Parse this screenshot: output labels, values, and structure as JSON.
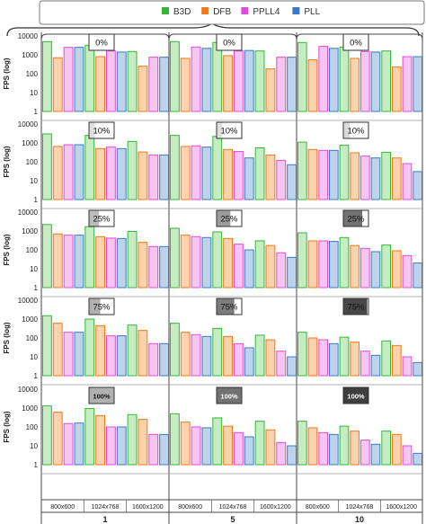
{
  "chart_data": {
    "type": "bar",
    "title": "",
    "legend": {
      "placement": "top",
      "entries": [
        {
          "name": "B3D",
          "fill": "#c6ecc2",
          "stroke": "#35b53a"
        },
        {
          "name": "DFB",
          "fill": "#fbd2ae",
          "stroke": "#f07a18"
        },
        {
          "name": "PPLL4",
          "fill": "#f6c6f3",
          "stroke": "#e24ad8"
        },
        {
          "name": "PLL",
          "fill": "#bdd3ea",
          "stroke": "#3b78c4"
        }
      ]
    },
    "ylabel": "FPS (log)",
    "yscale": "log",
    "grid": true,
    "groups": [
      {
        "label": "1",
        "resolutions": [
          "800x600",
          "1024x768",
          "1600x1200"
        ]
      },
      {
        "label": "5",
        "resolutions": [
          "800x600",
          "1024x768",
          "1600x1200"
        ]
      },
      {
        "label": "10",
        "resolutions": [
          "800x600",
          "1024x768",
          "1600x1200"
        ]
      }
    ],
    "panels": [
      {
        "overlay_label": "0%",
        "overlay_fill": [
          0,
          0,
          0
        ],
        "ylim": [
          1,
          10000
        ],
        "yticks": [
          "10000",
          "1000",
          "100",
          "10",
          "1"
        ],
        "values": [
          [
            [
              5000,
              700,
              2500,
              2500
            ],
            [
              3200,
              800,
              1600,
              1400
            ],
            [
              1500,
              250,
              750,
              750
            ]
          ],
          [
            [
              5000,
              650,
              2600,
              2200
            ],
            [
              4500,
              900,
              1600,
              1700
            ],
            [
              1600,
              180,
              750,
              750
            ]
          ],
          [
            [
              4500,
              550,
              2800,
              2200
            ],
            [
              2600,
              650,
              1500,
              1400
            ],
            [
              1600,
              230,
              800,
              800
            ]
          ]
        ]
      },
      {
        "overlay_label": "10%",
        "overlay_fill": [
          0.08,
          0.08,
          0.1
        ],
        "ylim": [
          1,
          10000
        ],
        "yticks": [
          "10000",
          "1000",
          "100",
          "10",
          "1"
        ],
        "values": [
          [
            [
              3000,
              650,
              800,
              800
            ],
            [
              2500,
              500,
              600,
              500
            ],
            [
              1200,
              330,
              230,
              230
            ]
          ],
          [
            [
              2500,
              650,
              700,
              600
            ],
            [
              2200,
              450,
              350,
              160
            ],
            [
              550,
              230,
              120,
              70
            ]
          ],
          [
            [
              1100,
              450,
              400,
              400
            ],
            [
              750,
              300,
              200,
              160
            ],
            [
              320,
              160,
              80,
              30
            ]
          ]
        ]
      },
      {
        "overlay_label": "25%",
        "overlay_fill": [
          0.25,
          0.4,
          0.6
        ],
        "ylim": [
          1,
          10000
        ],
        "yticks": [
          "10000",
          "1000",
          "100",
          "10",
          "1"
        ],
        "values": [
          [
            [
              2200,
              700,
              600,
              600
            ],
            [
              1700,
              500,
              420,
              400
            ],
            [
              950,
              250,
              150,
              150
            ]
          ],
          [
            [
              1400,
              600,
              500,
              450
            ],
            [
              900,
              400,
              200,
              100
            ],
            [
              300,
              170,
              70,
              40
            ]
          ],
          [
            [
              800,
              300,
              300,
              280
            ],
            [
              450,
              170,
              120,
              80
            ],
            [
              180,
              90,
              50,
              20
            ]
          ]
        ]
      },
      {
        "overlay_label": "75%",
        "overlay_fill": [
          0.3,
          0.55,
          0.8
        ],
        "ylim": [
          1,
          10000
        ],
        "yticks": [
          "10000",
          "1000",
          "100",
          "10",
          "1"
        ],
        "values": [
          [
            [
              1500,
              600,
              200,
              200
            ],
            [
              1000,
              450,
              130,
              130
            ],
            [
              480,
              250,
              50,
              50
            ]
          ],
          [
            [
              600,
              200,
              150,
              120
            ],
            [
              320,
              120,
              50,
              30
            ],
            [
              140,
              80,
              20,
              10
            ]
          ],
          [
            [
              200,
              100,
              80,
              50
            ],
            [
              110,
              60,
              20,
              12
            ],
            [
              70,
              40,
              10,
              5
            ]
          ]
        ]
      },
      {
        "overlay_label": "100%",
        "overlay_fill": [
          0.3,
          0.6,
          0.85
        ],
        "ylim": [
          1,
          10000
        ],
        "yticks": [
          "10000",
          "1000",
          "100",
          "10",
          "1"
        ],
        "values": [
          [
            [
              1300,
              600,
              150,
              160
            ],
            [
              950,
              400,
              100,
              100
            ],
            [
              450,
              250,
              40,
              40
            ]
          ],
          [
            [
              500,
              180,
              100,
              90
            ],
            [
              300,
              110,
              50,
              30
            ],
            [
              200,
              70,
              15,
              10
            ]
          ],
          [
            [
              200,
              90,
              50,
              40
            ],
            [
              110,
              60,
              20,
              12
            ],
            [
              60,
              40,
              10,
              4
            ]
          ]
        ]
      }
    ]
  }
}
